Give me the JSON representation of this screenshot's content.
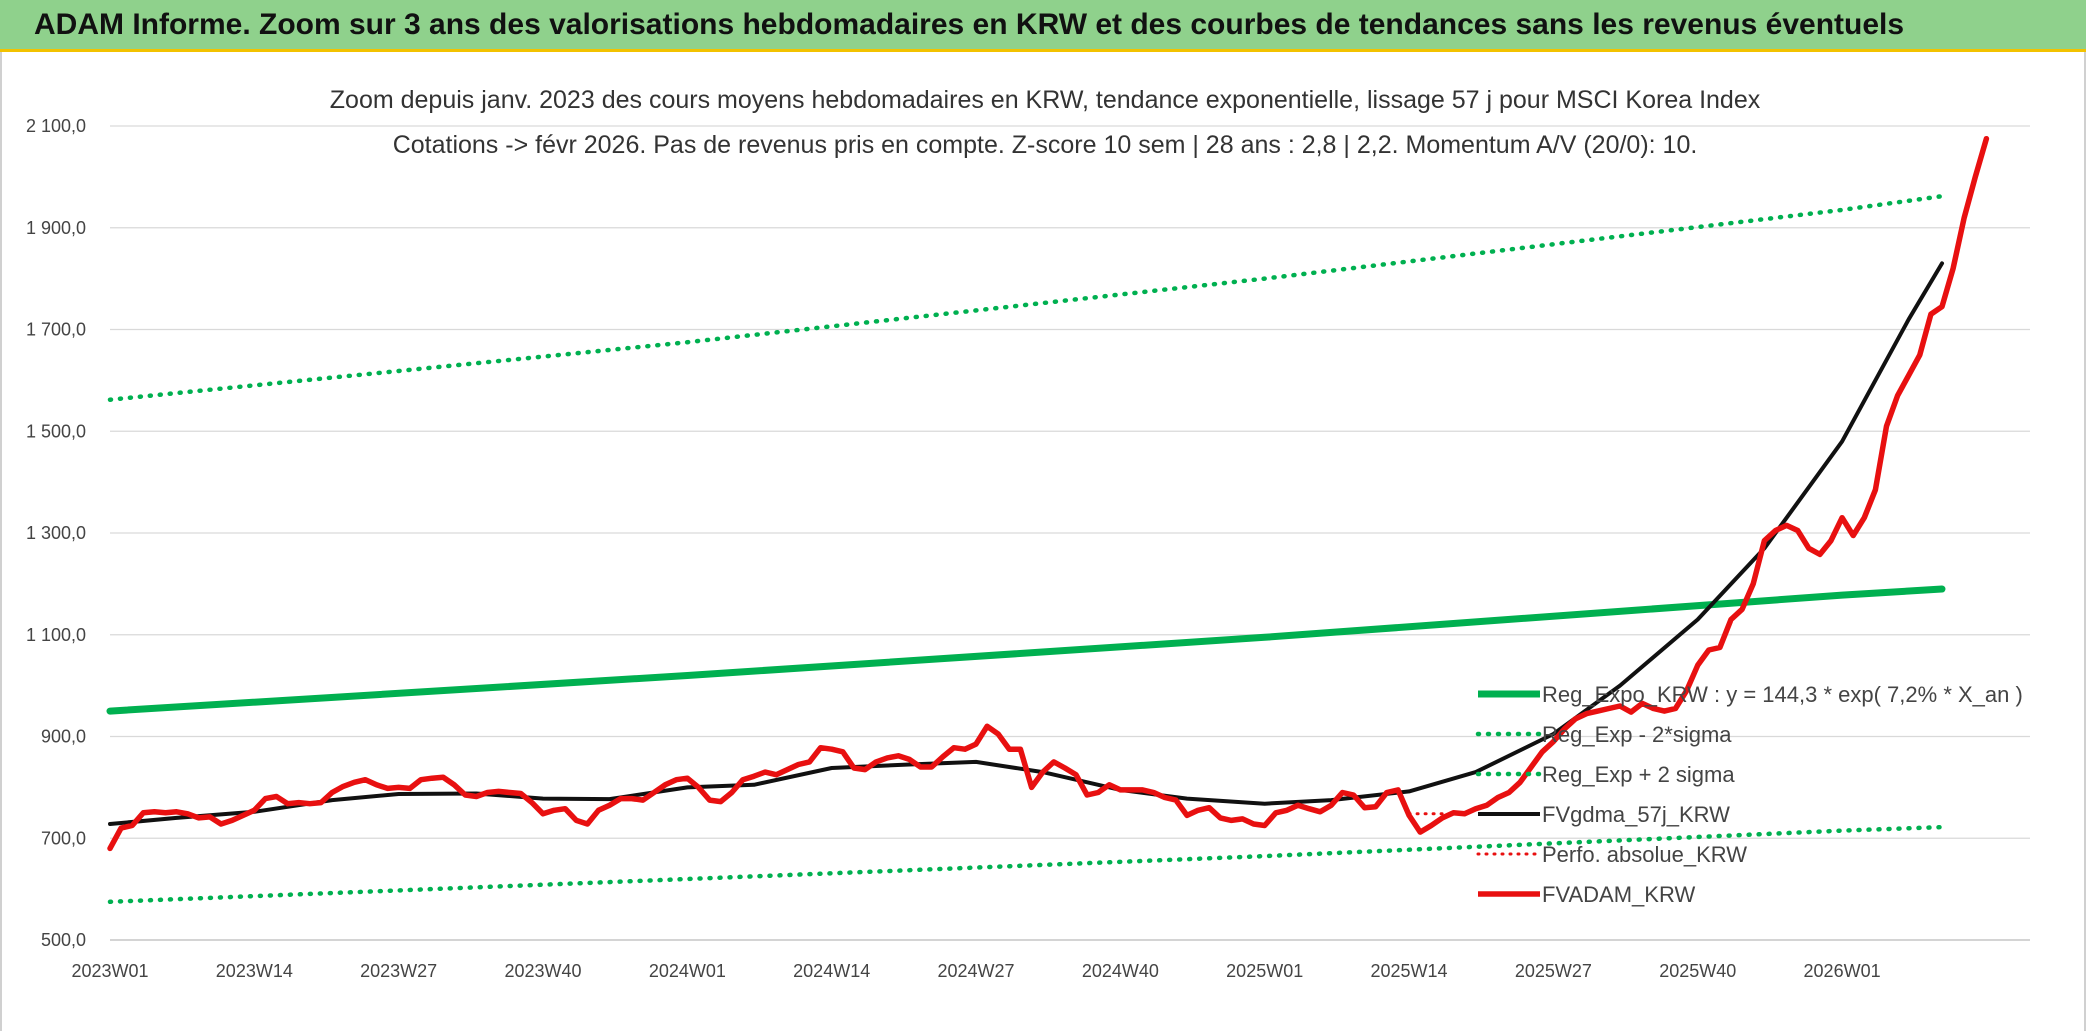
{
  "header": {
    "title": "ADAM Informe. Zoom sur 3 ans des valorisations hebdomadaires en KRW et des courbes de tendances sans les revenus éventuels"
  },
  "chart_data": {
    "type": "line",
    "title_line1": "Zoom depuis janv. 2023 des cours moyens hebdomadaires en KRW, tendance exponentielle, lissage 57 j pour MSCI Korea Index",
    "title_line2": "Cotations -> févr 2026. Pas de revenus pris en compte. Z-score 10 sem | 28 ans : 2,8 | 2,2. Momentum A/V (20/0): 10.",
    "ylim": [
      500,
      2100
    ],
    "y_ticks": [
      "500,0",
      "700,0",
      "900,0",
      "1 100,0",
      "1 300,0",
      "1 500,0",
      "1 700,0",
      "1 900,0",
      "2 100,0"
    ],
    "x_ticks": [
      "2023W01",
      "2023W14",
      "2023W27",
      "2023W40",
      "2024W01",
      "2024W14",
      "2024W27",
      "2024W40",
      "2025W01",
      "2025W14",
      "2025W27",
      "2025W40",
      "2026W01"
    ],
    "x_range_weeks": [
      0,
      165
    ],
    "grid": true,
    "legend_position": "right",
    "colors": {
      "trend": "#00b050",
      "sma": "#111111",
      "adam": "#e81010"
    },
    "legend": [
      {
        "label": "Reg_Expo_KRW : y = 144,3 * exp( 7,2% *  X_an )",
        "style": "thick-green"
      },
      {
        "label": "Reg_Exp - 2*sigma",
        "style": "dotted-green"
      },
      {
        "label": "Reg_Exp + 2 sigma",
        "style": "dotted-green"
      },
      {
        "label": "FVgdma_57j_KRW",
        "style": "thin-black"
      },
      {
        "label": "Perfo. absolue_KRW",
        "style": "dotted-red"
      },
      {
        "label": "FVADAM_KRW",
        "style": "thick-red"
      }
    ],
    "series": [
      {
        "name": "Reg_Expo_KRW : y = 144,3 * exp( 7,2% *  X_an )",
        "style": "thick-green",
        "points": [
          [
            0,
            950
          ],
          [
            52,
            1020
          ],
          [
            104,
            1095
          ],
          [
            156,
            1178
          ],
          [
            165,
            1190
          ]
        ]
      },
      {
        "name": "Reg_Exp - 2*sigma",
        "style": "dotted-green",
        "points": [
          [
            0,
            575
          ],
          [
            52,
            620
          ],
          [
            104,
            665
          ],
          [
            156,
            715
          ],
          [
            165,
            722
          ]
        ]
      },
      {
        "name": "Reg_Exp + 2 sigma",
        "style": "dotted-green",
        "points": [
          [
            0,
            1562
          ],
          [
            52,
            1675
          ],
          [
            104,
            1800
          ],
          [
            156,
            1935
          ],
          [
            165,
            1962
          ]
        ]
      },
      {
        "name": "FVgdma_57j_KRW",
        "style": "thin-black",
        "points": [
          [
            0,
            728
          ],
          [
            6,
            740
          ],
          [
            13,
            752
          ],
          [
            20,
            775
          ],
          [
            26,
            787
          ],
          [
            33,
            788
          ],
          [
            39,
            778
          ],
          [
            45,
            777
          ],
          [
            52,
            800
          ],
          [
            58,
            805
          ],
          [
            65,
            838
          ],
          [
            72,
            845
          ],
          [
            78,
            850
          ],
          [
            84,
            830
          ],
          [
            91,
            795
          ],
          [
            97,
            778
          ],
          [
            104,
            768
          ],
          [
            110,
            775
          ],
          [
            117,
            792
          ],
          [
            123,
            830
          ],
          [
            130,
            905
          ],
          [
            136,
            1000
          ],
          [
            143,
            1130
          ],
          [
            149,
            1270
          ],
          [
            156,
            1480
          ],
          [
            162,
            1720
          ],
          [
            165,
            1830
          ]
        ]
      },
      {
        "name": "Perfo. absolue_KRW",
        "style": "dotted-red",
        "points": [
          [
            117,
            748
          ],
          [
            120,
            748
          ]
        ]
      },
      {
        "name": "FVADAM_KRW",
        "style": "thick-red",
        "points": [
          [
            0,
            680
          ],
          [
            1,
            720
          ],
          [
            2,
            725
          ],
          [
            3,
            750
          ],
          [
            4,
            752
          ],
          [
            5,
            750
          ],
          [
            6,
            752
          ],
          [
            7,
            748
          ],
          [
            8,
            740
          ],
          [
            9,
            742
          ],
          [
            10,
            728
          ],
          [
            11,
            735
          ],
          [
            12,
            745
          ],
          [
            13,
            755
          ],
          [
            14,
            778
          ],
          [
            15,
            782
          ],
          [
            16,
            768
          ],
          [
            17,
            770
          ],
          [
            18,
            768
          ],
          [
            19,
            770
          ],
          [
            20,
            790
          ],
          [
            21,
            802
          ],
          [
            22,
            810
          ],
          [
            23,
            815
          ],
          [
            24,
            805
          ],
          [
            25,
            798
          ],
          [
            26,
            800
          ],
          [
            27,
            798
          ],
          [
            28,
            815
          ],
          [
            29,
            818
          ],
          [
            30,
            820
          ],
          [
            31,
            805
          ],
          [
            32,
            785
          ],
          [
            33,
            782
          ],
          [
            34,
            790
          ],
          [
            35,
            792
          ],
          [
            36,
            790
          ],
          [
            37,
            788
          ],
          [
            38,
            770
          ],
          [
            39,
            748
          ],
          [
            40,
            755
          ],
          [
            41,
            758
          ],
          [
            42,
            735
          ],
          [
            43,
            728
          ],
          [
            44,
            755
          ],
          [
            45,
            765
          ],
          [
            46,
            778
          ],
          [
            47,
            778
          ],
          [
            48,
            775
          ],
          [
            49,
            790
          ],
          [
            50,
            805
          ],
          [
            51,
            815
          ],
          [
            52,
            818
          ],
          [
            53,
            800
          ],
          [
            54,
            775
          ],
          [
            55,
            772
          ],
          [
            56,
            790
          ],
          [
            57,
            815
          ],
          [
            58,
            822
          ],
          [
            59,
            830
          ],
          [
            60,
            825
          ],
          [
            61,
            835
          ],
          [
            62,
            845
          ],
          [
            63,
            850
          ],
          [
            64,
            878
          ],
          [
            65,
            875
          ],
          [
            66,
            870
          ],
          [
            67,
            838
          ],
          [
            68,
            835
          ],
          [
            69,
            850
          ],
          [
            70,
            858
          ],
          [
            71,
            862
          ],
          [
            72,
            855
          ],
          [
            73,
            840
          ],
          [
            74,
            840
          ],
          [
            75,
            860
          ],
          [
            76,
            878
          ],
          [
            77,
            875
          ],
          [
            78,
            885
          ],
          [
            79,
            920
          ],
          [
            80,
            905
          ],
          [
            81,
            875
          ],
          [
            82,
            875
          ],
          [
            83,
            800
          ],
          [
            84,
            830
          ],
          [
            85,
            850
          ],
          [
            86,
            838
          ],
          [
            87,
            825
          ],
          [
            88,
            785
          ],
          [
            89,
            790
          ],
          [
            90,
            805
          ],
          [
            91,
            795
          ],
          [
            92,
            795
          ],
          [
            93,
            795
          ],
          [
            94,
            790
          ],
          [
            95,
            780
          ],
          [
            96,
            775
          ],
          [
            97,
            745
          ],
          [
            98,
            755
          ],
          [
            99,
            760
          ],
          [
            100,
            740
          ],
          [
            101,
            735
          ],
          [
            102,
            738
          ],
          [
            103,
            728
          ],
          [
            104,
            725
          ],
          [
            105,
            750
          ],
          [
            106,
            755
          ],
          [
            107,
            765
          ],
          [
            108,
            758
          ],
          [
            109,
            752
          ],
          [
            110,
            765
          ],
          [
            111,
            790
          ],
          [
            112,
            785
          ],
          [
            113,
            760
          ],
          [
            114,
            762
          ],
          [
            115,
            790
          ],
          [
            116,
            795
          ],
          [
            117,
            745
          ],
          [
            118,
            712
          ],
          [
            119,
            725
          ],
          [
            120,
            740
          ],
          [
            121,
            750
          ],
          [
            122,
            748
          ],
          [
            123,
            758
          ],
          [
            124,
            765
          ],
          [
            125,
            780
          ],
          [
            126,
            790
          ],
          [
            127,
            810
          ],
          [
            128,
            840
          ],
          [
            129,
            870
          ],
          [
            130,
            890
          ],
          [
            131,
            915
          ],
          [
            132,
            935
          ],
          [
            133,
            945
          ],
          [
            134,
            950
          ],
          [
            135,
            955
          ],
          [
            136,
            960
          ],
          [
            137,
            948
          ],
          [
            138,
            965
          ],
          [
            139,
            955
          ],
          [
            140,
            950
          ],
          [
            141,
            955
          ],
          [
            142,
            990
          ],
          [
            143,
            1040
          ],
          [
            144,
            1070
          ],
          [
            145,
            1075
          ],
          [
            146,
            1130
          ],
          [
            147,
            1150
          ],
          [
            148,
            1200
          ],
          [
            149,
            1285
          ],
          [
            150,
            1305
          ],
          [
            151,
            1315
          ],
          [
            152,
            1305
          ],
          [
            153,
            1270
          ],
          [
            154,
            1258
          ],
          [
            155,
            1285
          ],
          [
            156,
            1330
          ],
          [
            157,
            1295
          ],
          [
            158,
            1330
          ],
          [
            159,
            1385
          ],
          [
            160,
            1510
          ],
          [
            161,
            1570
          ],
          [
            162,
            1610
          ],
          [
            163,
            1650
          ],
          [
            164,
            1730
          ],
          [
            165,
            1745
          ],
          [
            166,
            1820
          ],
          [
            167,
            1920
          ],
          [
            168,
            2000
          ],
          [
            169,
            2075
          ]
        ]
      }
    ]
  }
}
